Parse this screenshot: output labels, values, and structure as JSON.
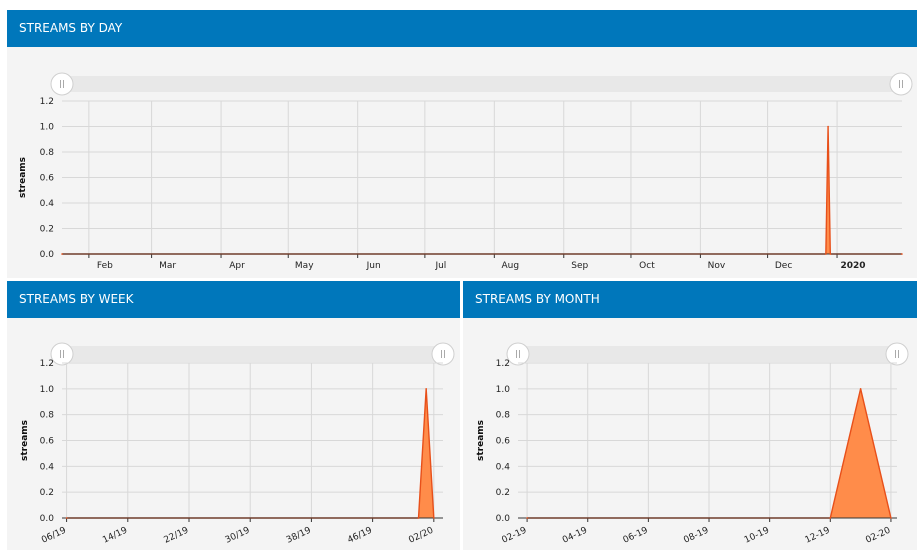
{
  "colors": {
    "header": "#0077bb",
    "area_fill": "#ff8c4a",
    "area_stroke": "#e8501a"
  },
  "panels": [
    {
      "id": "day",
      "title": "STREAMS BY DAY"
    },
    {
      "id": "week",
      "title": "STREAMS BY WEEK"
    },
    {
      "id": "month",
      "title": "STREAMS BY MONTH"
    }
  ],
  "chart_data": [
    {
      "type": "area",
      "title": "STREAMS BY DAY",
      "ylabel": "streams",
      "ylim": [
        0,
        1.2
      ],
      "yticks": [
        "0.0",
        "0.2",
        "0.4",
        "0.6",
        "0.8",
        "1.0",
        "1.2"
      ],
      "xticks": [
        "Feb",
        "Mar",
        "Apr",
        "May",
        "Jun",
        "Jul",
        "Aug",
        "Sep",
        "Oct",
        "Nov",
        "Dec",
        "2020"
      ],
      "xlim": [
        "2019-01-20",
        "2020-01-30"
      ],
      "x": [
        "2019-01-20",
        "2019-12-27",
        "2019-12-28",
        "2019-12-29",
        "2020-01-30"
      ],
      "values": [
        0,
        0,
        1,
        0,
        0
      ],
      "grid": true
    },
    {
      "type": "area",
      "title": "STREAMS BY WEEK",
      "ylabel": "streams",
      "ylim": [
        0,
        1.2
      ],
      "yticks": [
        "0.0",
        "0.2",
        "0.4",
        "0.6",
        "0.8",
        "1.0",
        "1.2"
      ],
      "xticks": [
        "06/19",
        "14/19",
        "22/19",
        "30/19",
        "38/19",
        "46/19",
        "02/20"
      ],
      "x": [
        "06/19",
        "52/19",
        "01/20",
        "02/20"
      ],
      "values": [
        0,
        0,
        1,
        0
      ],
      "grid": true
    },
    {
      "type": "area",
      "title": "STREAMS BY MONTH",
      "ylabel": "streams",
      "ylim": [
        0,
        1.2
      ],
      "yticks": [
        "0.0",
        "0.2",
        "0.4",
        "0.6",
        "0.8",
        "1.0",
        "1.2"
      ],
      "xticks": [
        "02-19",
        "04-19",
        "06-19",
        "08-19",
        "10-19",
        "12-19",
        "02-20"
      ],
      "x": [
        "02-19",
        "12-19",
        "01-20",
        "02-20"
      ],
      "values": [
        0,
        0,
        1,
        0
      ],
      "grid": true
    }
  ]
}
